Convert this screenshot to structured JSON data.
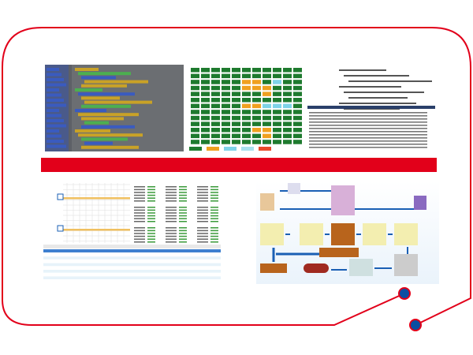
{
  "colors": {
    "frame": "#e2001a",
    "accent_bar": "#e2001a",
    "dot_fill": "#0b4ea2",
    "grid_green": "#1e7a2e",
    "grid_orange": "#f0a020",
    "grid_cyan": "#7fd3e8",
    "flow_arrow": "#1a5fb4",
    "flow_box": "#f3eeb0",
    "flow_crate": "#b8641c"
  },
  "images": [
    {
      "name": "visual-block-programming-screenshot"
    },
    {
      "name": "status-grid-screenshot"
    },
    {
      "name": "code-editor-screenshot"
    },
    {
      "name": "schedule-table-screenshot"
    },
    {
      "name": "warehouse-flow-diagram"
    }
  ]
}
